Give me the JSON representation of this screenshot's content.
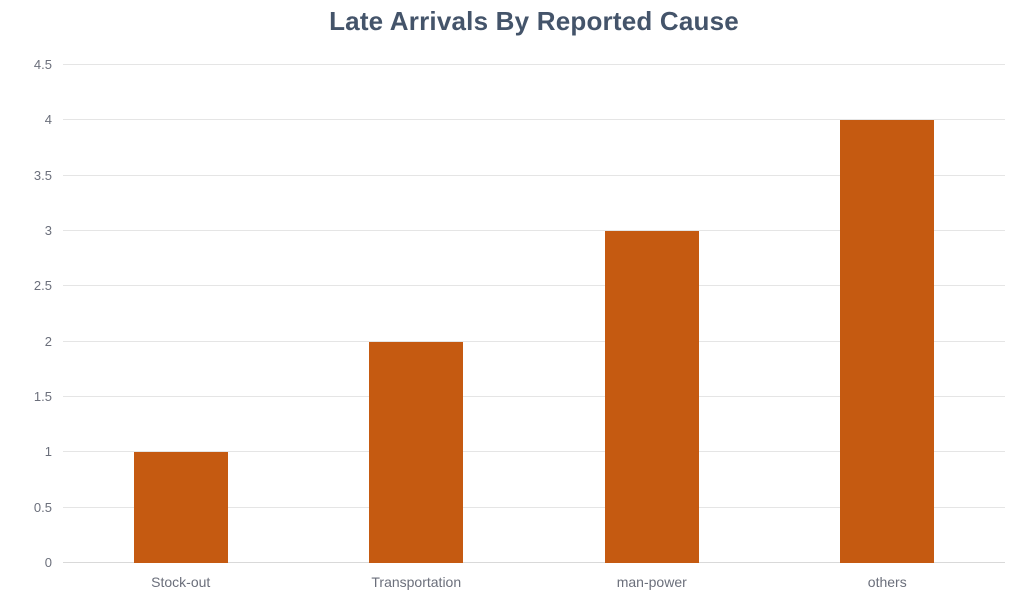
{
  "chart_data": {
    "type": "bar",
    "title": "Late Arrivals By Reported Cause",
    "categories": [
      "Stock-out",
      "Transportation",
      "man-power",
      "others"
    ],
    "values": [
      1,
      2,
      3,
      4
    ],
    "xlabel": "",
    "ylabel": "",
    "ylim": [
      0,
      4.5
    ],
    "ytick_step": 0.5,
    "ytick_labels": [
      "0",
      "0.5",
      "1",
      "1.5",
      "2",
      "2.5",
      "3",
      "3.5",
      "4",
      "4.5"
    ],
    "grid": true,
    "legend_position": "none",
    "colors": {
      "bar": "#C55A11",
      "title": "#44546A",
      "axis_labels": "#6B6F7B",
      "gridline": "#E5E5E5",
      "baseline": "#D9D9D9",
      "background": "#FFFFFF"
    }
  }
}
